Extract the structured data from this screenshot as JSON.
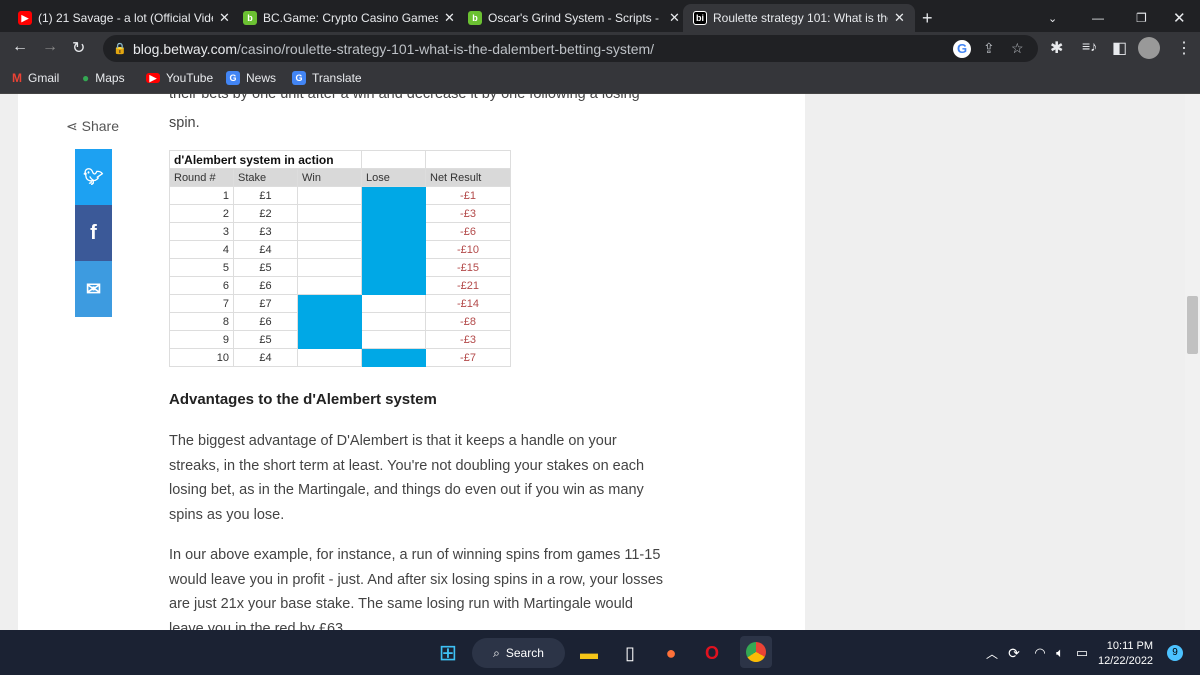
{
  "browser": {
    "tabs": [
      {
        "title": "(1) 21 Savage - a lot (Official Vide",
        "icon": "youtube-icon",
        "color": "#ff0000"
      },
      {
        "title": "BC.Game: Crypto Casino Games &",
        "icon": "bcgame-icon",
        "color": "#6bc132"
      },
      {
        "title": "Oscar's Grind System - Scripts - B",
        "icon": "bcgame-icon",
        "color": "#6bc132"
      },
      {
        "title": "Roulette strategy 101: What is the",
        "icon": "betway-icon",
        "color": "#000000"
      }
    ],
    "url_host": "blog.betway.com",
    "url_path": "/casino/roulette-strategy-101-what-is-the-dalembert-betting-system/",
    "bookmarks": [
      "Gmail",
      "Maps",
      "YouTube",
      "News",
      "Translate"
    ]
  },
  "page": {
    "share_label": "Share",
    "intro_partial": "their bets by one unit after a win and decrease it by one following a losing",
    "intro_end": "spin.",
    "table": {
      "title": "d'Alembert system in action",
      "headers": [
        "Round #",
        "Stake",
        "Win",
        "Lose",
        "Net Result"
      ],
      "rows": [
        {
          "round": "1",
          "stake": "£1",
          "result": "lose",
          "net": "-£1"
        },
        {
          "round": "2",
          "stake": "£2",
          "result": "lose",
          "net": "-£3"
        },
        {
          "round": "3",
          "stake": "£3",
          "result": "lose",
          "net": "-£6"
        },
        {
          "round": "4",
          "stake": "£4",
          "result": "lose",
          "net": "-£10"
        },
        {
          "round": "5",
          "stake": "£5",
          "result": "lose",
          "net": "-£15"
        },
        {
          "round": "6",
          "stake": "£6",
          "result": "lose",
          "net": "-£21"
        },
        {
          "round": "7",
          "stake": "£7",
          "result": "win",
          "net": "-£14"
        },
        {
          "round": "8",
          "stake": "£6",
          "result": "win",
          "net": "-£8"
        },
        {
          "round": "9",
          "stake": "£5",
          "result": "win",
          "net": "-£3"
        },
        {
          "round": "10",
          "stake": "£4",
          "result": "lose",
          "net": "-£7"
        }
      ],
      "highlight_color": "#00a8e6"
    },
    "heading": "Advantages to the d'Alembert system",
    "para1": "The biggest advantage of D'Alembert is that it keeps a handle on your streaks, in the short term at least. You're not doubling your stakes on each losing bet, as in the Martingale, and things do even out if you win as many spins as you lose.",
    "para2": "In our above example, for instance, a run of winning spins from games 11-15 would leave you in profit - just. And after six losing spins in a row, your losses are just 21x your base stake. The same losing run with Martingale would leave you in the red by £63."
  },
  "taskbar": {
    "search": "Search",
    "time": "10:11 PM",
    "date": "12/22/2022",
    "notifications": "9"
  }
}
